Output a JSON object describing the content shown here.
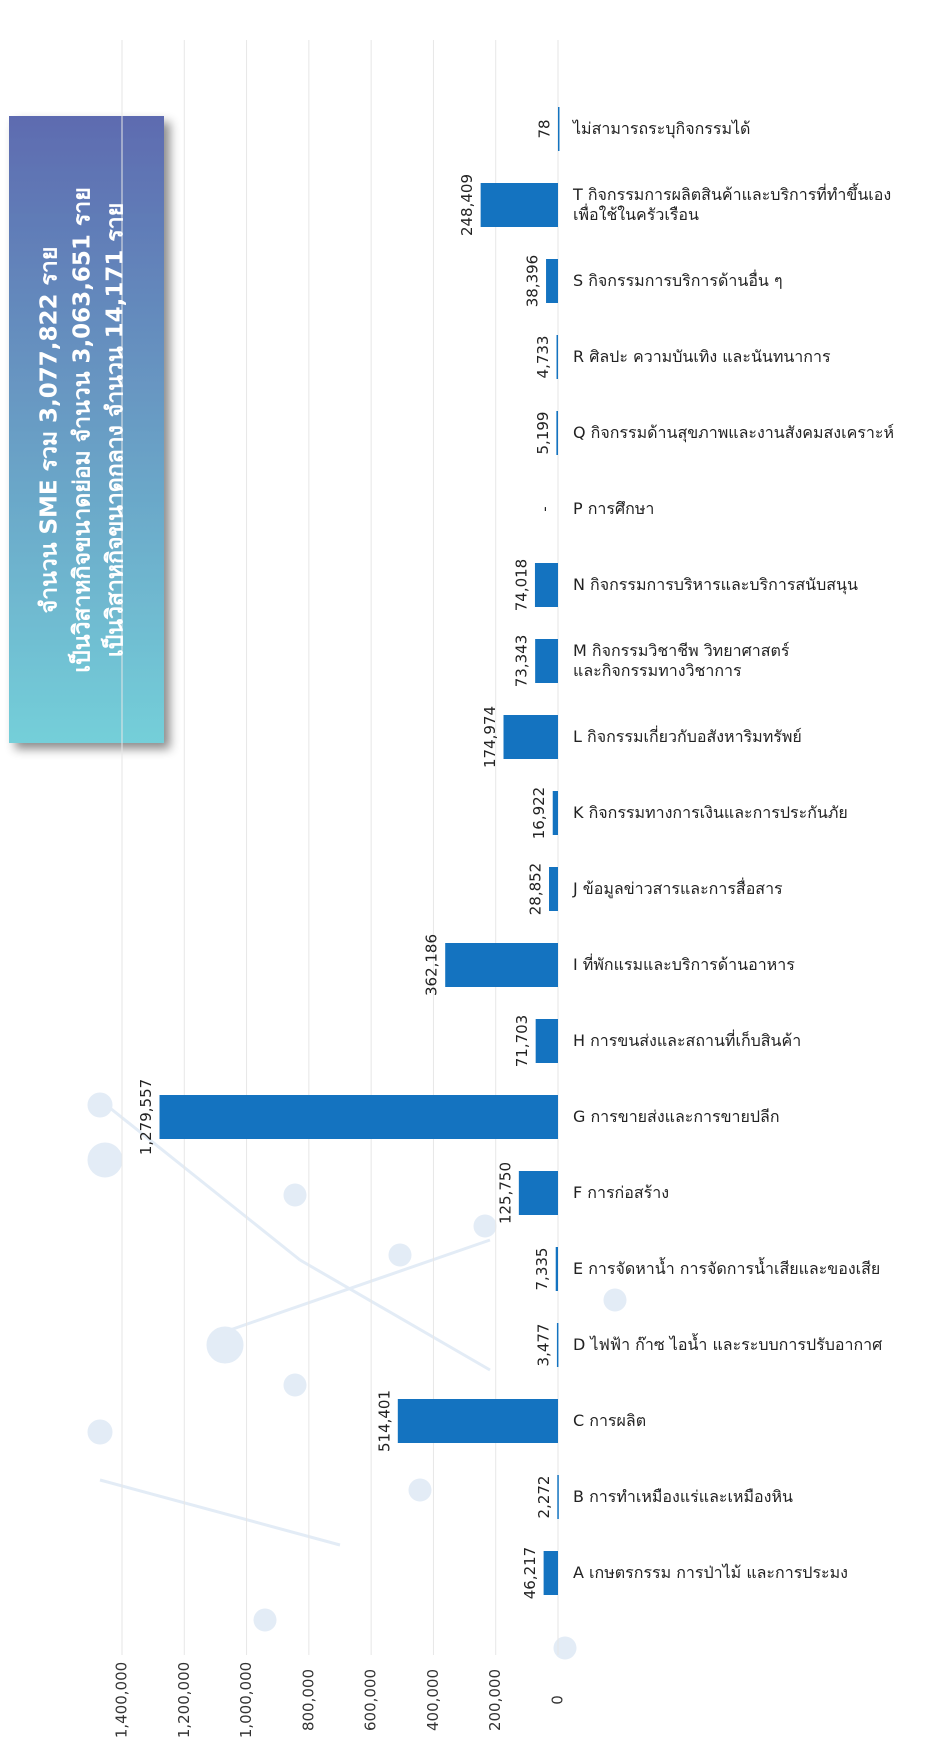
{
  "chart_data": {
    "type": "bar",
    "orientation": "horizontal",
    "title_lines": [
      "จำนวน SME รวม 3,077,822 ราย",
      "เป็นวิสาหกิจขนาดย่อม จำนวน 3,063,651 ราย",
      "เป็นวิสาหกิจขนาดกลาง จำนวน 14,171 ราย"
    ],
    "categories": [
      "A เกษตรกรรม การป่าไม้ และการประมง",
      "B การทำเหมืองแร่และเหมืองหิน",
      "C การผลิต",
      "D ไฟฟ้า ก๊าซ ไอน้ำ และระบบการปรับอากาศ",
      "E การจัดหาน้ำ การจัดการน้ำเสียและของเสีย",
      "F การก่อสร้าง",
      "G การขายส่งและการขายปลีก",
      "H การขนส่งและสถานที่เก็บสินค้า",
      "I ที่พักแรมและบริการด้านอาหาร",
      "J ข้อมูลข่าวสารและการสื่อสาร",
      "K กิจกรรมทางการเงินและการประกันภัย",
      "L กิจกรรมเกี่ยวกับอสังหาริมทรัพย์",
      "M กิจกรรมวิชาชีพ วิทยาศาสตร์\nและกิจกรรมทางวิชาการ",
      "N กิจกรรมการบริหารและบริการสนับสนุน",
      "P การศึกษา",
      "Q กิจกรรมด้านสุขภาพและงานสังคมสงเคราะห์",
      "R ศิลปะ ความบันเทิง และนันทนาการ",
      "S กิจกรรมการบริการด้านอื่น ๆ",
      "T กิจกรรมการผลิตสินค้าและบริการที่ทำขึ้นเอง\nเพื่อใช้ในครัวเรือน",
      "ไม่สามารถระบุกิจกรรมได้"
    ],
    "values": [
      46217,
      2272,
      514401,
      3477,
      7335,
      125750,
      1279557,
      71703,
      362186,
      28852,
      16922,
      174974,
      73343,
      74018,
      null,
      5199,
      4733,
      38396,
      248409,
      78
    ],
    "value_labels": [
      "46,217",
      "2,272",
      "514,401",
      "3,477",
      "7,335",
      "125,750",
      "1,279,557",
      "71,703",
      "362,186",
      "28,852",
      "16,922",
      "174,974",
      "73,343",
      "74,018",
      "-",
      "5,199",
      "4,733",
      "38,396",
      "248,409",
      "78"
    ],
    "color": "#1473c0",
    "xlim": [
      0,
      1400000
    ],
    "xticks": [
      0,
      {
        "value": 200000,
        "label": "200,000"
      },
      {
        "value": 400000,
        "label": "400,000"
      },
      {
        "value": 600000,
        "label": "600,000"
      },
      {
        "value": 800000,
        "label": "800,000"
      },
      {
        "value": 1000000,
        "label": "1,000,000"
      },
      {
        "value": 1200000,
        "label": "1,200,000"
      },
      {
        "value": 1400000,
        "label": "1,400,000"
      }
    ],
    "grid": true
  }
}
